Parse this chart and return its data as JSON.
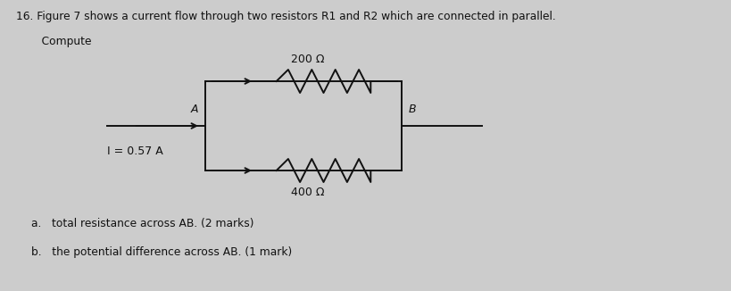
{
  "title_text": "16. Figure 7 shows a current flow through two resistors R1 and R2 which are connected in parallel.",
  "compute_text": "   Compute",
  "question_a": "a.   total resistance across AB. (2 marks)",
  "question_b": "b.   the potential difference across AB. (1 mark)",
  "current_label": "I = 0.57 A",
  "r1_label": "200 Ω",
  "r2_label": "400 Ω",
  "node_a": "A",
  "node_b": "B",
  "bg_color": "#cccccc",
  "text_color": "#111111",
  "circuit_color": "#111111",
  "fig_width": 8.2,
  "fig_height": 3.26,
  "dpi": 100
}
